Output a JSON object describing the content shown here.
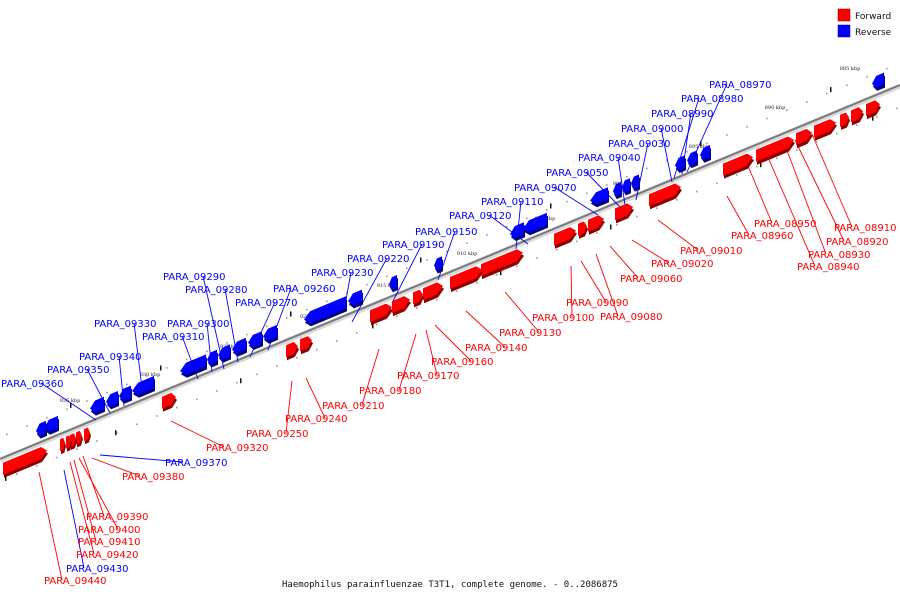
{
  "title": "Haemophilus parainfluenzae T3T1, complete genome. - 0..2086875",
  "legend": {
    "forward": "Forward",
    "reverse": "Reverse"
  },
  "colors": {
    "forward": "#ff0000",
    "reverse": "#0000ff",
    "axis": "#8c8c8c"
  },
  "ticks": [
    "885 kbp",
    "890 kbp",
    "895 kbp",
    "900 kbp",
    "905 kbp",
    "910 kbp",
    "915 kbp",
    "920 kbp",
    "925 kbp",
    "930 kbp",
    "935 kbp"
  ],
  "genes": [
    {
      "id": "PARA_08910",
      "strand": "forward"
    },
    {
      "id": "PARA_08920",
      "strand": "forward"
    },
    {
      "id": "PARA_08930",
      "strand": "forward"
    },
    {
      "id": "PARA_08940",
      "strand": "forward"
    },
    {
      "id": "PARA_08950",
      "strand": "forward"
    },
    {
      "id": "PARA_08960",
      "strand": "forward"
    },
    {
      "id": "PARA_08970",
      "strand": "reverse"
    },
    {
      "id": "PARA_08980",
      "strand": "reverse"
    },
    {
      "id": "PARA_08990",
      "strand": "reverse"
    },
    {
      "id": "PARA_09000",
      "strand": "reverse"
    },
    {
      "id": "PARA_09010",
      "strand": "forward"
    },
    {
      "id": "PARA_09020",
      "strand": "forward"
    },
    {
      "id": "PARA_09030",
      "strand": "reverse"
    },
    {
      "id": "PARA_09040",
      "strand": "reverse"
    },
    {
      "id": "PARA_09050",
      "strand": "reverse"
    },
    {
      "id": "PARA_09060",
      "strand": "forward"
    },
    {
      "id": "PARA_09070",
      "strand": "reverse"
    },
    {
      "id": "PARA_09080",
      "strand": "forward"
    },
    {
      "id": "PARA_09090",
      "strand": "forward"
    },
    {
      "id": "PARA_09100",
      "strand": "forward"
    },
    {
      "id": "PARA_09110",
      "strand": "reverse"
    },
    {
      "id": "PARA_09120",
      "strand": "reverse"
    },
    {
      "id": "PARA_09130",
      "strand": "forward"
    },
    {
      "id": "PARA_09140",
      "strand": "forward"
    },
    {
      "id": "PARA_09150",
      "strand": "reverse"
    },
    {
      "id": "PARA_09160",
      "strand": "forward"
    },
    {
      "id": "PARA_09170",
      "strand": "forward"
    },
    {
      "id": "PARA_09180",
      "strand": "forward"
    },
    {
      "id": "PARA_09190",
      "strand": "reverse"
    },
    {
      "id": "PARA_09210",
      "strand": "forward"
    },
    {
      "id": "PARA_09220",
      "strand": "reverse"
    },
    {
      "id": "PARA_09230",
      "strand": "reverse"
    },
    {
      "id": "PARA_09240",
      "strand": "forward"
    },
    {
      "id": "PARA_09250",
      "strand": "forward"
    },
    {
      "id": "PARA_09260",
      "strand": "reverse"
    },
    {
      "id": "PARA_09270",
      "strand": "reverse"
    },
    {
      "id": "PARA_09280",
      "strand": "reverse"
    },
    {
      "id": "PARA_09290",
      "strand": "reverse"
    },
    {
      "id": "PARA_09300",
      "strand": "reverse"
    },
    {
      "id": "PARA_09310",
      "strand": "reverse"
    },
    {
      "id": "PARA_09320",
      "strand": "forward"
    },
    {
      "id": "PARA_09330",
      "strand": "reverse"
    },
    {
      "id": "PARA_09340",
      "strand": "reverse"
    },
    {
      "id": "PARA_09350",
      "strand": "reverse"
    },
    {
      "id": "PARA_09360",
      "strand": "reverse"
    },
    {
      "id": "PARA_09370",
      "strand": "reverse"
    },
    {
      "id": "PARA_09380",
      "strand": "forward"
    },
    {
      "id": "PARA_09390",
      "strand": "forward"
    },
    {
      "id": "PARA_09400",
      "strand": "forward"
    },
    {
      "id": "PARA_09410",
      "strand": "forward"
    },
    {
      "id": "PARA_09420",
      "strand": "forward"
    },
    {
      "id": "PARA_09430",
      "strand": "reverse"
    },
    {
      "id": "PARA_09440",
      "strand": "forward"
    }
  ]
}
